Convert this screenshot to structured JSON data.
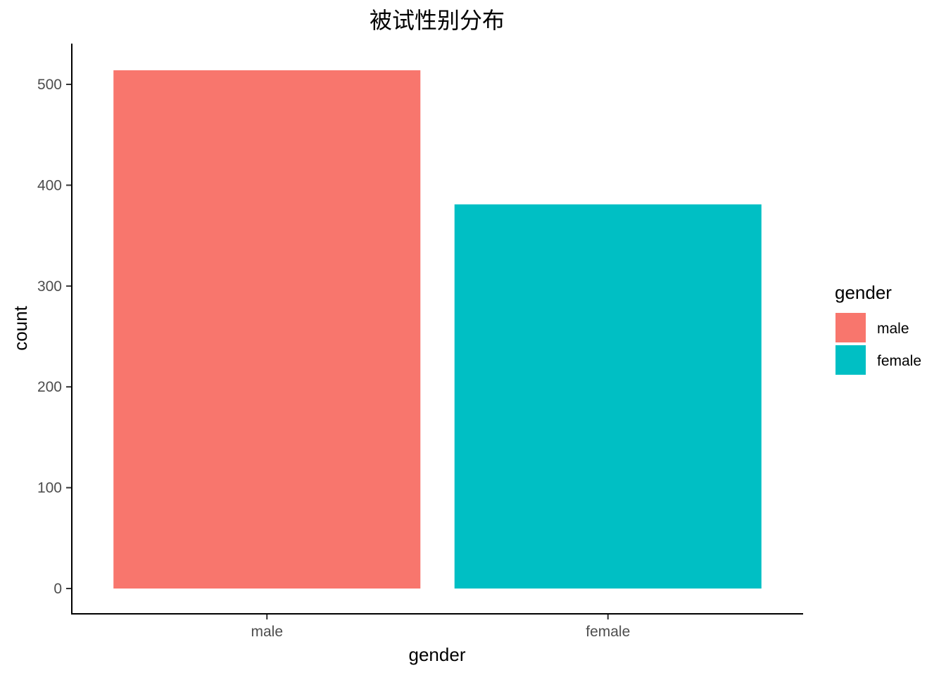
{
  "chart_data": {
    "type": "bar",
    "title": "被试性别分布",
    "xlabel": "gender",
    "ylabel": "count",
    "categories": [
      "male",
      "female"
    ],
    "values": [
      514,
      381
    ],
    "colors": [
      "#F8766D",
      "#00BFC4"
    ],
    "ylim": [
      0,
      540
    ],
    "yticks": [
      0,
      100,
      200,
      300,
      400,
      500
    ],
    "grid": false,
    "legend": {
      "title": "gender",
      "placement": "right",
      "items": [
        {
          "label": "male",
          "color": "#F8766D"
        },
        {
          "label": "female",
          "color": "#00BFC4"
        }
      ]
    }
  }
}
